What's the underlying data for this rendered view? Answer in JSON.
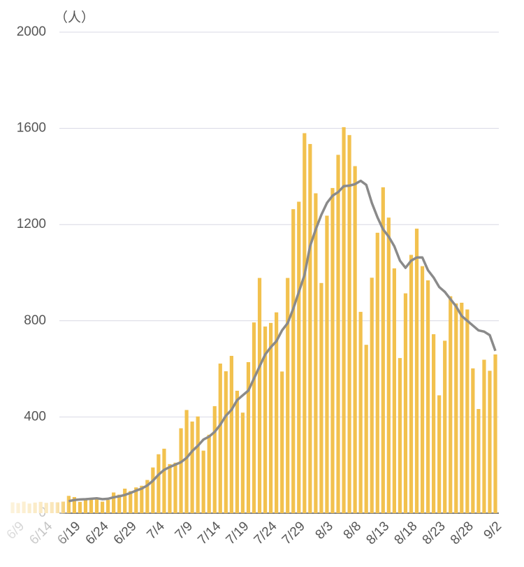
{
  "chart_data": {
    "type": "bar",
    "y_unit": "（人）",
    "categories": [
      null,
      "6/9",
      null,
      null,
      null,
      null,
      "6/14",
      null,
      null,
      null,
      null,
      "6/19",
      null,
      null,
      null,
      null,
      "6/24",
      null,
      null,
      null,
      null,
      "6/29",
      null,
      null,
      null,
      null,
      "7/4",
      null,
      null,
      null,
      null,
      "7/9",
      null,
      null,
      null,
      null,
      "7/14",
      null,
      null,
      null,
      null,
      "7/19",
      null,
      null,
      null,
      null,
      "7/24",
      null,
      null,
      null,
      null,
      "7/29",
      null,
      null,
      null,
      null,
      "8/3",
      null,
      null,
      null,
      null,
      "8/8",
      null,
      null,
      null,
      null,
      "8/13",
      null,
      null,
      null,
      null,
      "8/18",
      null,
      null,
      null,
      null,
      "8/23",
      null,
      null,
      null,
      null,
      "8/28",
      null,
      null,
      null,
      null,
      "9/2"
    ],
    "values": [
      45,
      42,
      48,
      40,
      44,
      47,
      43,
      46,
      45,
      48,
      72,
      67,
      47,
      60,
      63,
      58,
      48,
      55,
      86,
      77,
      102,
      92,
      107,
      114,
      138,
      190,
      245,
      268,
      204,
      210,
      353,
      429,
      381,
      402,
      260,
      326,
      445,
      622,
      590,
      654,
      509,
      418,
      628,
      793,
      978,
      776,
      791,
      835,
      589,
      978,
      1264,
      1295,
      1580,
      1535,
      1330,
      957,
      1237,
      1352,
      1490,
      1605,
      1572,
      1443,
      837,
      700,
      979,
      1166,
      1355,
      1229,
      1018,
      645,
      914,
      1074,
      1183,
      1027,
      968,
      744,
      490,
      717,
      902,
      872,
      875,
      847,
      602,
      433,
      638,
      592,
      660
    ],
    "average": [
      null,
      null,
      null,
      null,
      null,
      null,
      null,
      null,
      null,
      null,
      50,
      55,
      57,
      58,
      60,
      62,
      58,
      60,
      66,
      70,
      76,
      84,
      94,
      102,
      115,
      135,
      160,
      180,
      192,
      202,
      212,
      230,
      258,
      280,
      306,
      318,
      338,
      368,
      405,
      430,
      470,
      490,
      510,
      560,
      610,
      660,
      690,
      715,
      760,
      790,
      850,
      920,
      990,
      1110,
      1180,
      1240,
      1290,
      1320,
      1335,
      1360,
      1362,
      1368,
      1382,
      1365,
      1290,
      1230,
      1180,
      1150,
      1110,
      1050,
      1020,
      1050,
      1063,
      1063,
      1010,
      980,
      940,
      920,
      890,
      860,
      820,
      800,
      780,
      760,
      755,
      740,
      675
    ],
    "color": "#f2c14e",
    "line_color": "#8a8a8a",
    "ylim": [
      0,
      2000
    ],
    "yticks": [
      0,
      400,
      800,
      1200,
      1600,
      2000
    ],
    "grid": true
  }
}
